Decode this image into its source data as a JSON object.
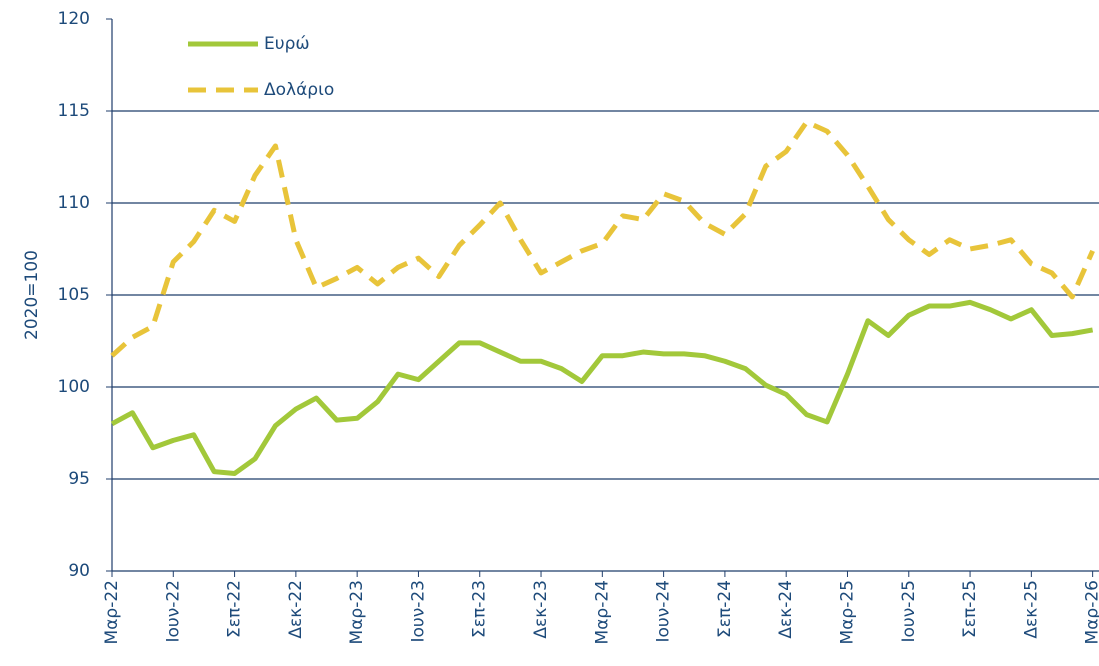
{
  "chart_data": {
    "type": "line",
    "y_label": "2020=100",
    "categories": [
      "Μαρ-22",
      null,
      null,
      "Ιουν-22",
      null,
      null,
      "Σεπ-22",
      null,
      null,
      "Δεκ-22",
      null,
      null,
      "Μαρ-23",
      null,
      null,
      "Ιουν-23",
      null,
      null,
      "Σεπ-23",
      null,
      null,
      "Δεκ-23",
      null,
      null,
      "Μαρ-24",
      null,
      null,
      "Ιουν-24",
      null,
      null,
      "Σεπ-24",
      null,
      null,
      "Δεκ-24",
      null,
      null,
      "Μαρ-25",
      null,
      null,
      "Ιουν-25",
      null,
      null,
      "Σεπ-25",
      null,
      null,
      "Δεκ-25",
      null,
      null,
      "Μαρ-26"
    ],
    "series": [
      {
        "name": "Ευρώ",
        "color": "#a2c83a",
        "dash": false,
        "values": [
          98.0,
          98.6,
          96.7,
          97.1,
          97.4,
          95.4,
          95.3,
          96.1,
          97.9,
          98.8,
          99.4,
          98.2,
          98.3,
          99.2,
          100.7,
          100.4,
          101.4,
          102.4,
          102.4,
          101.9,
          101.4,
          101.4,
          101.0,
          100.3,
          101.7,
          101.7,
          101.9,
          101.8,
          101.8,
          101.7,
          101.4,
          101.0,
          100.1,
          99.6,
          98.5,
          98.1,
          100.7,
          103.6,
          102.8,
          103.9,
          104.4,
          104.4,
          104.6,
          104.2,
          103.7,
          104.2,
          102.8,
          102.9,
          103.1
        ]
      },
      {
        "name": "Δολάριο",
        "color": "#e8c43a",
        "dash": true,
        "values": [
          101.7,
          102.7,
          103.3,
          106.8,
          107.9,
          109.6,
          109.0,
          111.5,
          113.1,
          108.0,
          105.4,
          105.9,
          106.5,
          105.6,
          106.5,
          107.0,
          106.0,
          107.7,
          108.8,
          110.0,
          108.0,
          106.2,
          106.8,
          107.4,
          107.8,
          109.3,
          109.1,
          110.5,
          110.1,
          108.9,
          108.3,
          109.4,
          112.0,
          112.8,
          114.4,
          113.9,
          112.6,
          110.9,
          109.1,
          108.0,
          107.2,
          108.0,
          107.5,
          107.7,
          108.0,
          106.7,
          106.2,
          104.9,
          107.4
        ]
      }
    ],
    "ylim": [
      90,
      120
    ],
    "yticks": [
      90,
      95,
      100,
      105,
      110,
      115,
      120
    ],
    "grid": true
  }
}
